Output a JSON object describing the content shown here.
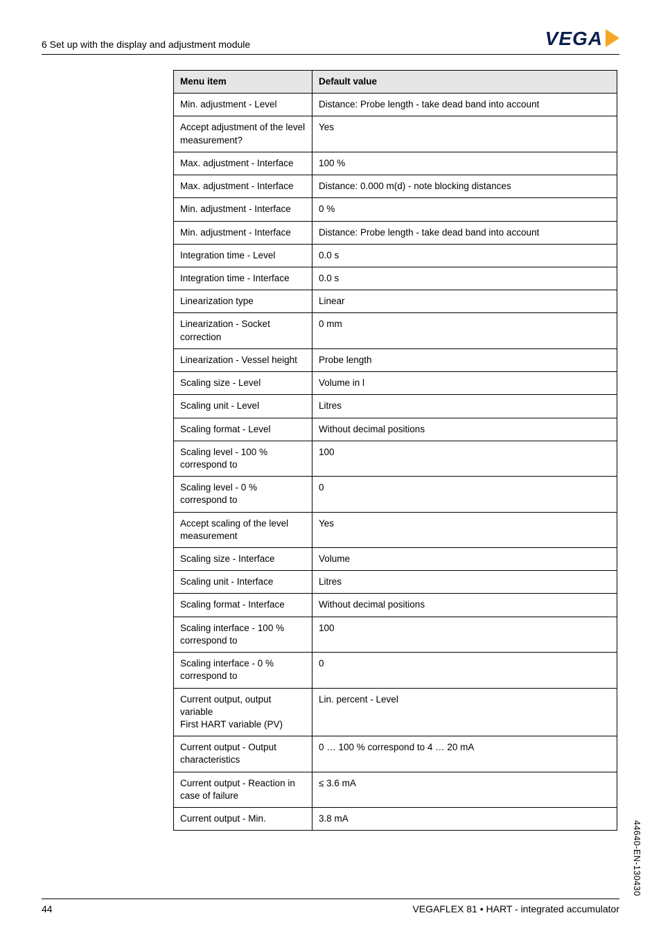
{
  "header": {
    "section_title": "6 Set up with the display and adjustment module",
    "logo_text": "VEGA",
    "logo_text_color": "#0a1f4d",
    "logo_triangle_color": "#f5a623"
  },
  "table": {
    "columns": [
      "Menu item",
      "Default value"
    ],
    "rows": [
      [
        "Min. adjustment - Level",
        "Distance: Probe length - take dead band into account"
      ],
      [
        "Accept adjustment of the level measurement?",
        "Yes"
      ],
      [
        "Max. adjustment - Interface",
        "100 %"
      ],
      [
        "Max. adjustment - Interface",
        "Distance: 0.000 m(d) - note blocking distances"
      ],
      [
        "Min. adjustment - Interface",
        "0 %"
      ],
      [
        "Min. adjustment - Interface",
        "Distance: Probe length - take dead band into account"
      ],
      [
        "Integration time - Level",
        "0.0 s"
      ],
      [
        "Integration time - Interface",
        "0.0 s"
      ],
      [
        "Linearization type",
        "Linear"
      ],
      [
        "Linearization - Socket correction",
        "0 mm"
      ],
      [
        "Linearization - Vessel height",
        "Probe length"
      ],
      [
        "Scaling size - Level",
        "Volume in l"
      ],
      [
        "Scaling unit - Level",
        "Litres"
      ],
      [
        "Scaling format - Level",
        "Without decimal positions"
      ],
      [
        "Scaling level - 100 % correspond to",
        "100"
      ],
      [
        "Scaling level - 0 % correspond to",
        "0"
      ],
      [
        "Accept scaling of the level measurement",
        "Yes"
      ],
      [
        "Scaling size - Interface",
        "Volume"
      ],
      [
        "Scaling unit - Interface",
        "Litres"
      ],
      [
        "Scaling format - Interface",
        "Without decimal positions"
      ],
      [
        "Scaling interface - 100 % correspond to",
        "100"
      ],
      [
        "Scaling interface - 0 % correspond to",
        "0"
      ],
      [
        "Current output, output variable\nFirst HART variable (PV)",
        "Lin. percent - Level"
      ],
      [
        "Current output - Output characteristics",
        "0 … 100 % correspond to 4 … 20 mA"
      ],
      [
        "Current output - Reaction in case of failure",
        "≤ 3.6 mA"
      ],
      [
        "Current output - Min.",
        "3.8 mA"
      ]
    ],
    "header_bg": "#e6e6e6",
    "border_color": "#000000",
    "font_size": 13.5
  },
  "footer": {
    "page_number": "44",
    "product_line": "VEGAFLEX 81 • HART - integrated accumulator"
  },
  "side_code": "44640-EN-130430"
}
